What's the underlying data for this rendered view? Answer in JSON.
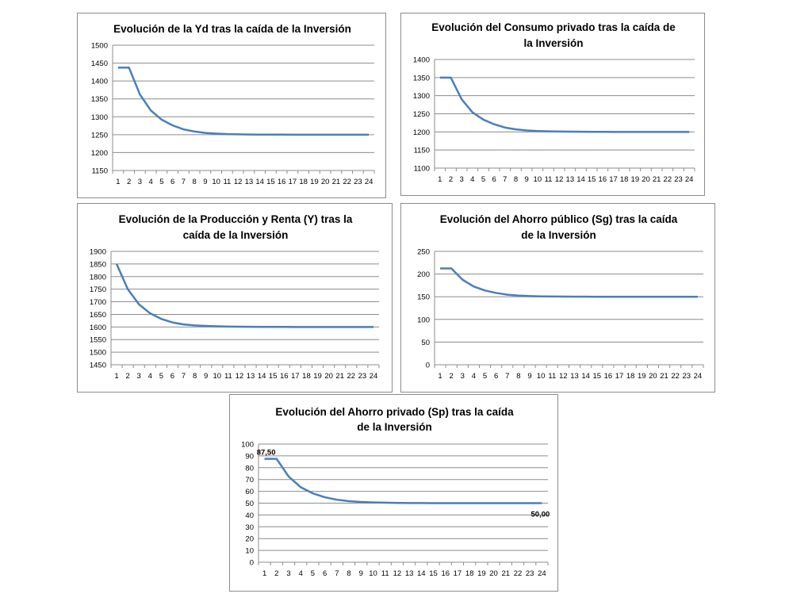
{
  "colors": {
    "series": "#4a7ebb",
    "grid": "#8c8c8c",
    "border": "#8c8c8c"
  },
  "chart_data": [
    {
      "type": "line",
      "title": [
        "Evolución de la Yd tras la caída de la Inversión"
      ],
      "x": [
        1,
        2,
        3,
        4,
        5,
        6,
        7,
        8,
        9,
        10,
        11,
        12,
        13,
        14,
        15,
        16,
        17,
        18,
        19,
        20,
        21,
        22,
        23,
        24
      ],
      "x_tick_labels": [
        "1",
        "2",
        "3",
        "4",
        "5",
        "6",
        "7",
        "8",
        "9",
        "10",
        "11",
        "12",
        "13",
        "14",
        "15",
        "16",
        "17",
        "18",
        "19",
        "20",
        "21",
        "22",
        "23",
        "24"
      ],
      "ylim": [
        1150,
        1500
      ],
      "y_ticks": [
        1150,
        1200,
        1250,
        1300,
        1350,
        1400,
        1450,
        1500
      ],
      "grid": true,
      "series": [
        {
          "values": [
            1437.5,
            1437.5,
            1362.5,
            1318,
            1292,
            1276,
            1265,
            1259,
            1255,
            1253,
            1251.5,
            1251,
            1250.5,
            1250.3,
            1250.2,
            1250.1,
            1250,
            1250,
            1250,
            1250,
            1250,
            1250,
            1250,
            1250
          ]
        }
      ]
    },
    {
      "type": "line",
      "title": [
        "Evolución del Consumo privado tras la caída de",
        "la Inversión"
      ],
      "x": [
        1,
        2,
        3,
        4,
        5,
        6,
        7,
        8,
        9,
        10,
        11,
        12,
        13,
        14,
        15,
        16,
        17,
        18,
        19,
        20,
        21,
        22,
        23,
        24
      ],
      "x_tick_labels": [
        "1",
        "2",
        "3",
        "4",
        "5",
        "6",
        "7",
        "8",
        "9",
        "10",
        "11",
        "12",
        "13",
        "14",
        "15",
        "16",
        "17",
        "18",
        "19",
        "20",
        "21",
        "22",
        "23",
        "24"
      ],
      "ylim": [
        1100,
        1400
      ],
      "y_ticks": [
        1100,
        1150,
        1200,
        1250,
        1300,
        1350,
        1400
      ],
      "grid": true,
      "series": [
        {
          "values": [
            1350,
            1350,
            1290,
            1254,
            1234,
            1221,
            1212,
            1207,
            1204,
            1202.5,
            1201.5,
            1201,
            1200.6,
            1200.4,
            1200.2,
            1200.1,
            1200,
            1200,
            1200,
            1200,
            1200,
            1200,
            1200,
            1200
          ]
        }
      ]
    },
    {
      "type": "line",
      "title": [
        "Evolución de la Producción y Renta (Y) tras la",
        "caída de la Inversión"
      ],
      "x": [
        1,
        2,
        3,
        4,
        5,
        6,
        7,
        8,
        9,
        10,
        11,
        12,
        13,
        14,
        15,
        16,
        17,
        18,
        19,
        20,
        21,
        22,
        23,
        24
      ],
      "x_tick_labels": [
        "1",
        "2",
        "3",
        "4",
        "5",
        "6",
        "7",
        "8",
        "9",
        "10",
        "11",
        "12",
        "13",
        "14",
        "15",
        "16",
        "17",
        "18",
        "19",
        "20",
        "21",
        "22",
        "23",
        "24"
      ],
      "ylim": [
        1450,
        1900
      ],
      "y_ticks": [
        1450,
        1500,
        1550,
        1600,
        1650,
        1700,
        1750,
        1800,
        1850,
        1900
      ],
      "grid": true,
      "series": [
        {
          "values": [
            1850,
            1750,
            1690,
            1654,
            1632,
            1618,
            1610,
            1606,
            1604,
            1602.5,
            1601.5,
            1601,
            1600.6,
            1600.4,
            1600.2,
            1600.1,
            1600,
            1600,
            1600,
            1600,
            1600,
            1600,
            1600,
            1600
          ]
        }
      ]
    },
    {
      "type": "line",
      "title": [
        "Evolución del Ahorro público (Sg) tras la caída",
        "de la Inversión"
      ],
      "x": [
        1,
        2,
        3,
        4,
        5,
        6,
        7,
        8,
        9,
        10,
        11,
        12,
        13,
        14,
        15,
        16,
        17,
        18,
        19,
        20,
        21,
        22,
        23,
        24
      ],
      "x_tick_labels": [
        "1",
        "2",
        "3",
        "4",
        "5",
        "6",
        "7",
        "8",
        "9",
        "10",
        "11",
        "12",
        "13",
        "14",
        "15",
        "16",
        "17",
        "18",
        "19",
        "20",
        "21",
        "22",
        "23",
        "24"
      ],
      "ylim": [
        0,
        250
      ],
      "y_ticks": [
        0,
        50,
        100,
        150,
        200,
        250
      ],
      "grid": true,
      "series": [
        {
          "values": [
            212.5,
            212.5,
            187.5,
            172.5,
            163.8,
            158.3,
            154.5,
            152.5,
            151.5,
            150.9,
            150.5,
            150.3,
            150.2,
            150.1,
            150,
            150,
            150,
            150,
            150,
            150,
            150,
            150,
            150,
            150
          ]
        }
      ]
    },
    {
      "type": "line",
      "title": [
        "Evolución del Ahorro privado (Sp) tras la caída",
        "de la Inversión"
      ],
      "x": [
        1,
        2,
        3,
        4,
        5,
        6,
        7,
        8,
        9,
        10,
        11,
        12,
        13,
        14,
        15,
        16,
        17,
        18,
        19,
        20,
        21,
        22,
        23,
        24
      ],
      "x_tick_labels": [
        "1",
        "2",
        "3",
        "4",
        "5",
        "6",
        "7",
        "8",
        "9",
        "10",
        "11",
        "12",
        "13",
        "14",
        "15",
        "16",
        "17",
        "18",
        "19",
        "20",
        "21",
        "22",
        "23",
        "24"
      ],
      "ylim": [
        0,
        100
      ],
      "y_ticks": [
        0,
        10,
        20,
        30,
        40,
        50,
        60,
        70,
        80,
        90,
        100
      ],
      "grid": true,
      "series": [
        {
          "values": [
            87.5,
            87.5,
            72.5,
            63.5,
            58.3,
            55,
            52.9,
            51.7,
            51,
            50.6,
            50.4,
            50.2,
            50.1,
            50.05,
            50,
            50,
            50,
            50,
            50,
            50,
            50,
            50,
            50,
            50
          ]
        }
      ],
      "data_labels": [
        {
          "index": 0,
          "text": "87,50"
        },
        {
          "index": 23,
          "text": "50,00"
        }
      ]
    }
  ]
}
